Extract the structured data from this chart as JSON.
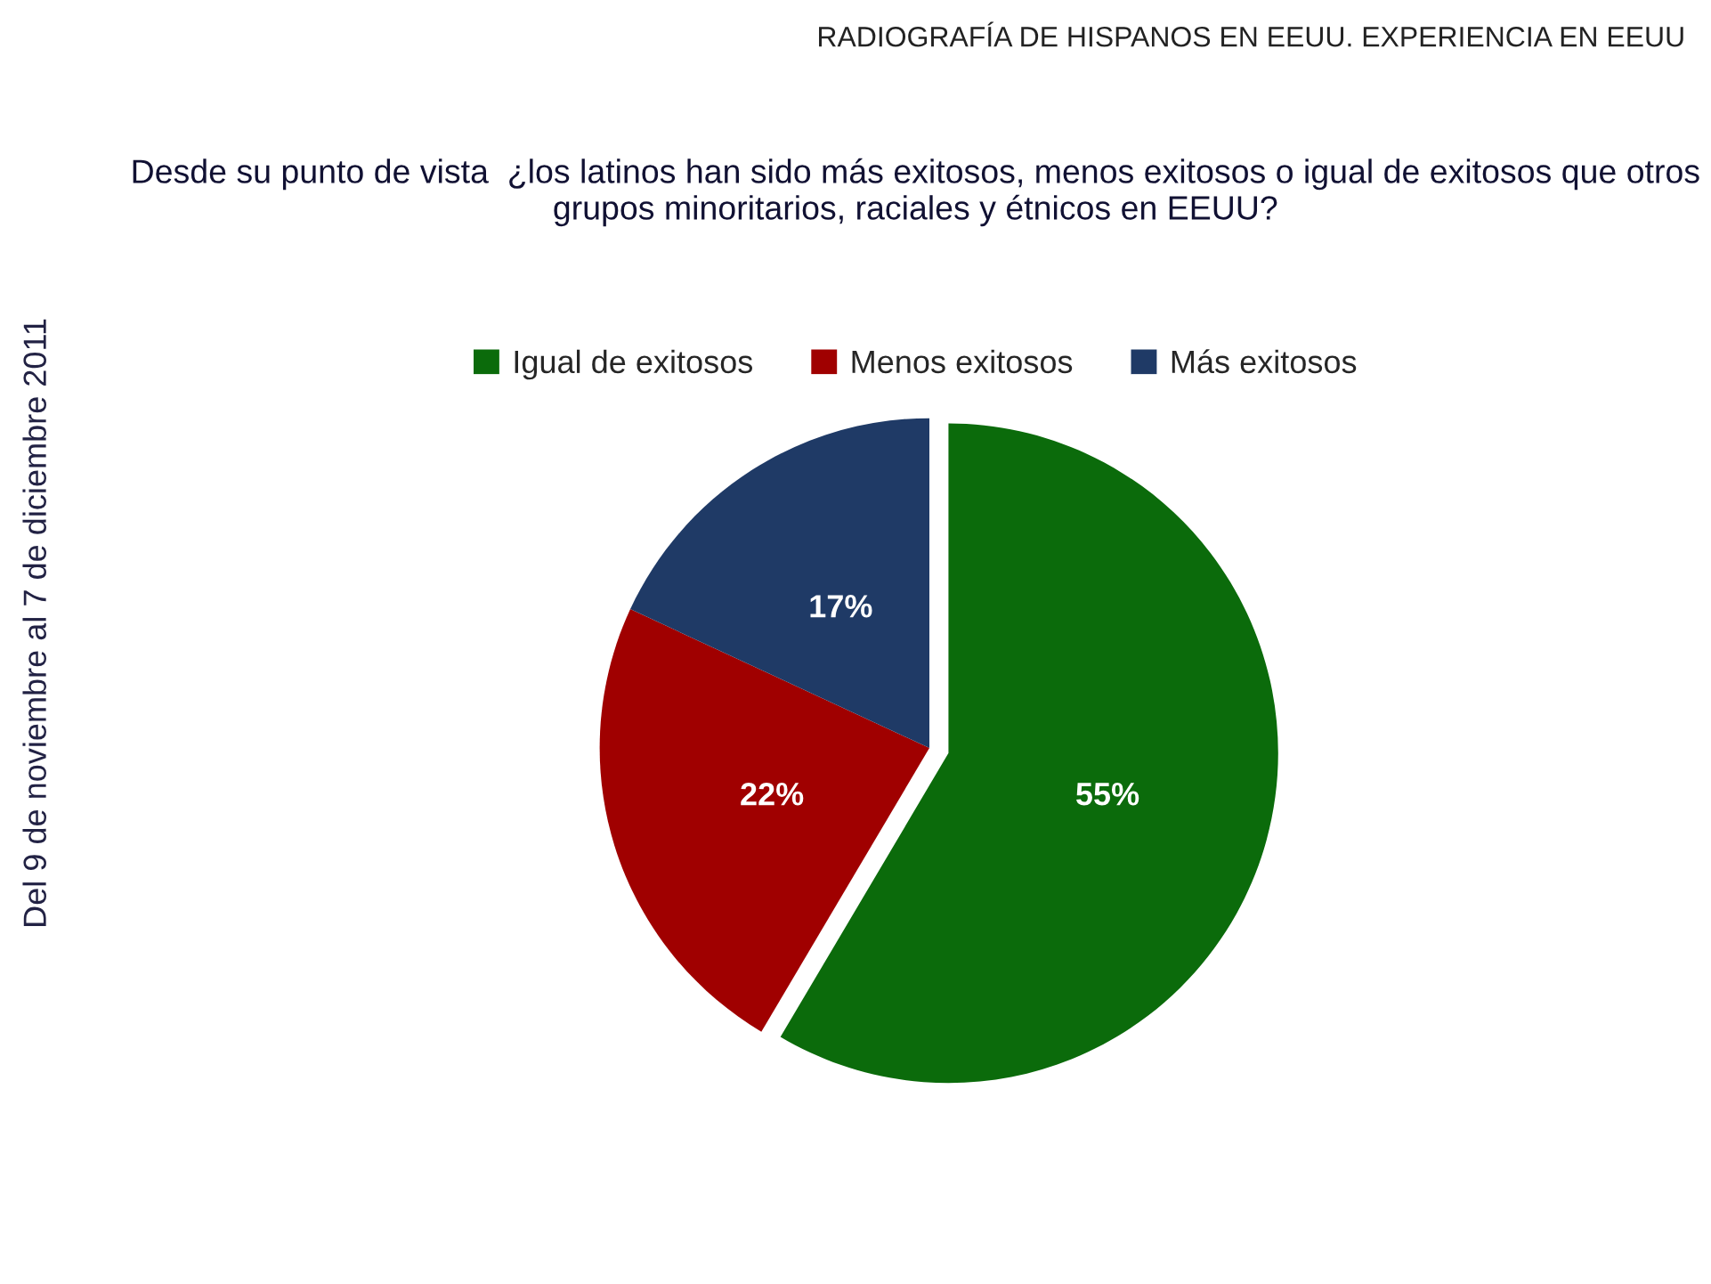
{
  "chart_data": {
    "type": "pie",
    "title": "RADIOGRAFÍA DE HISPANOS EN EEUU. EXPERIENCIA EN EEUU",
    "subtitle": "Desde su punto de vista  ¿los latinos han sido más exitosos, menos exitosos o igual de exitosos que otros grupos minoritarios, raciales y étnicos en EEUU?",
    "categories": [
      "Igual de exitosos",
      "Menos exitosos",
      "Más exitosos"
    ],
    "values": [
      55,
      22,
      17
    ],
    "colors": [
      "#0b6b0b",
      "#a00000",
      "#1f3a66"
    ],
    "value_labels": [
      "55%",
      "22%",
      "17%"
    ],
    "legend": "top",
    "annotations": [
      "Del 9 de noviembre al 7 de diciembre 2011"
    ]
  }
}
